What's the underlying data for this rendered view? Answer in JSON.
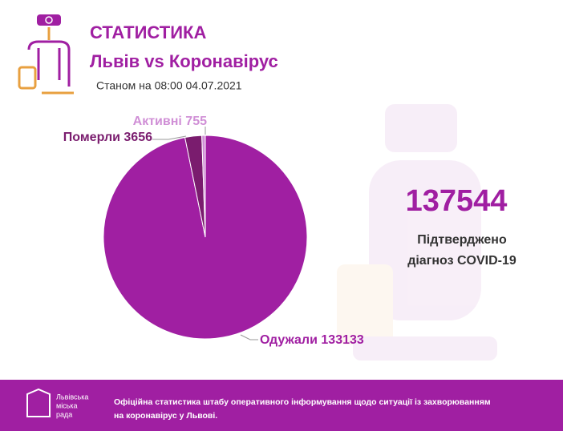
{
  "header": {
    "title": "СТАТИСТИКА",
    "subtitle": "Львів vs Коронавірус",
    "date": "Станом на 08:00 04.07.2021"
  },
  "chart_data": {
    "type": "pie",
    "categories": [
      "Одужали",
      "Померли",
      "Активні"
    ],
    "values": [
      133133,
      3656,
      755
    ],
    "colors": [
      "#a01fa2",
      "#7a1c6e",
      "#d08fd6"
    ]
  },
  "summary": {
    "total": 137544,
    "label_line1": "Підтверджено",
    "label_line2": "діагноз COVID-19"
  },
  "footer": {
    "org_line1": "Львівська",
    "org_line2": "міська",
    "org_line3": "рада",
    "text": "Офіційна статистика штабу оперативного інформування щодо ситуації із захворюванням на коронавірус у Львові."
  }
}
